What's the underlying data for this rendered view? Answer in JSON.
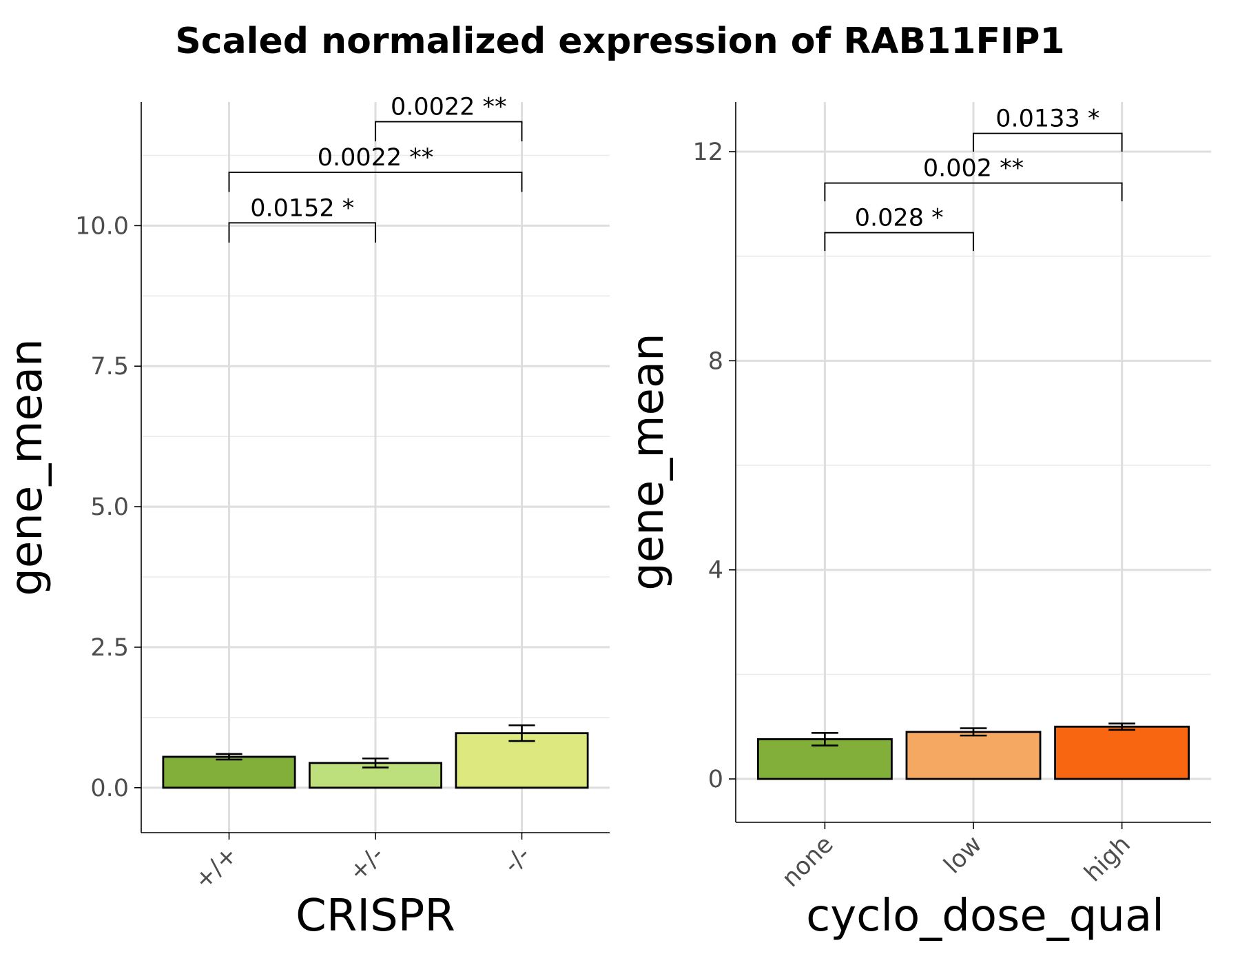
{
  "title": "Scaled normalized expression of RAB11FIP1",
  "chart_data": [
    {
      "type": "bar",
      "xlabel": "CRISPR",
      "ylabel": "gene_mean",
      "categories": [
        "+/+",
        "+/-",
        "-/-"
      ],
      "values": [
        0.55,
        0.44,
        0.97
      ],
      "errors": [
        0.05,
        0.08,
        0.14
      ],
      "colors": [
        "#82ae3a",
        "#bde07c",
        "#dde97f"
      ],
      "ylim": [
        -0.8,
        12.2
      ],
      "yticks": [
        0.0,
        2.5,
        5.0,
        7.5,
        10.0
      ],
      "ytick_labels": [
        "0.0",
        "2.5",
        "5.0",
        "7.5",
        "10.0"
      ],
      "yminor": [
        1.25,
        3.75,
        6.25,
        8.75,
        11.25
      ],
      "comparisons": [
        {
          "from": 0,
          "to": 1,
          "y": 10.05,
          "drop": 0.35,
          "label": "0.0152 *"
        },
        {
          "from": 0,
          "to": 2,
          "y": 10.95,
          "drop": 0.35,
          "label": "0.0022 **"
        },
        {
          "from": 1,
          "to": 2,
          "y": 11.85,
          "drop": 0.35,
          "label": "0.0022 **"
        }
      ],
      "grid": true,
      "legend": "none"
    },
    {
      "type": "bar",
      "xlabel": "cyclo_dose_qual",
      "ylabel": "gene_mean",
      "categories": [
        "none",
        "low",
        "high"
      ],
      "values": [
        0.76,
        0.9,
        1.0
      ],
      "errors": [
        0.12,
        0.07,
        0.06
      ],
      "colors": [
        "#82ae3a",
        "#f5a862",
        "#f86611"
      ],
      "ylim": [
        -0.83,
        12.95
      ],
      "yticks": [
        0,
        4,
        8,
        12
      ],
      "ytick_labels": [
        "0",
        "4",
        "8",
        "12"
      ],
      "yminor": [
        2,
        6,
        10
      ],
      "comparisons": [
        {
          "from": 0,
          "to": 1,
          "y": 10.45,
          "drop": 0.35,
          "label": "0.028 *"
        },
        {
          "from": 0,
          "to": 2,
          "y": 11.4,
          "drop": 0.35,
          "label": "0.002 **"
        },
        {
          "from": 1,
          "to": 2,
          "y": 12.35,
          "drop": 0.35,
          "label": "0.0133 *"
        }
      ],
      "grid": true,
      "legend": "none"
    }
  ]
}
